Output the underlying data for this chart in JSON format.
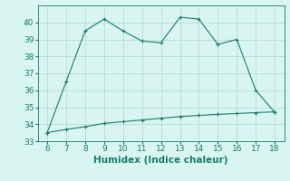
{
  "xlabel": "Humidex (Indice chaleur)",
  "ylabel": "",
  "x_main": [
    6,
    7,
    8,
    9,
    10,
    11,
    12,
    13,
    14,
    15,
    16,
    17,
    18
  ],
  "y_main": [
    33.5,
    36.5,
    39.5,
    40.2,
    39.5,
    38.9,
    38.8,
    40.3,
    40.2,
    38.7,
    39.0,
    36.0,
    34.7
  ],
  "x_second": [
    6,
    7,
    8,
    9,
    10,
    11,
    12,
    13,
    14,
    15,
    16,
    17,
    18
  ],
  "y_second": [
    33.5,
    33.7,
    33.85,
    34.05,
    34.15,
    34.25,
    34.35,
    34.45,
    34.52,
    34.58,
    34.63,
    34.68,
    34.73
  ],
  "line_color": "#1a7a6e",
  "bg_color": "#d8f5f0",
  "grid_color": "#b8ddd8",
  "xlim": [
    5.5,
    18.5
  ],
  "ylim": [
    33,
    41
  ],
  "xticks": [
    6,
    7,
    8,
    9,
    10,
    11,
    12,
    13,
    14,
    15,
    16,
    17,
    18
  ],
  "yticks": [
    33,
    34,
    35,
    36,
    37,
    38,
    39,
    40
  ],
  "tick_fontsize": 6.5,
  "xlabel_fontsize": 7.5,
  "marker": "+"
}
